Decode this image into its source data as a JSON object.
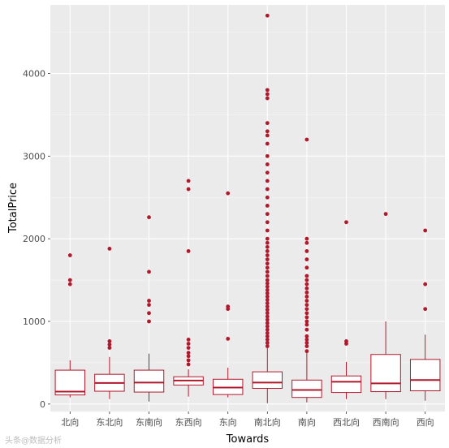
{
  "chart_data": {
    "type": "box",
    "xlabel": "Towards",
    "ylabel": "TotalPrice",
    "ylim": [
      -90,
      4830
    ],
    "y_ticks": [
      0,
      1000,
      2000,
      3000,
      4000
    ],
    "grid": true,
    "panel_color": "#ebebeb",
    "box_color": "#b2182b",
    "outlier_color": "#b2182b",
    "categories": [
      "北向",
      "东北向",
      "东南向",
      "东西向",
      "东向",
      "南北向",
      "南向",
      "西北向",
      "西南向",
      "西向"
    ],
    "boxes": [
      {
        "category": "北向",
        "whisker_low": 80,
        "q1": 110,
        "median": 150,
        "q3": 410,
        "whisker_high": 530,
        "outliers": [
          1450,
          1500,
          1800
        ]
      },
      {
        "category": "东北向",
        "whisker_low": 60,
        "q1": 155,
        "median": 255,
        "q3": 360,
        "whisker_high": 570,
        "outliers": [
          680,
          720,
          760,
          1880
        ]
      },
      {
        "category": "东南向",
        "whisker_low": 30,
        "q1": 145,
        "median": 260,
        "q3": 410,
        "whisker_high": 610,
        "outliers": [
          1000,
          1100,
          1200,
          1250,
          1600,
          2260
        ]
      },
      {
        "category": "东西向",
        "whisker_low": 90,
        "q1": 230,
        "median": 285,
        "q3": 330,
        "whisker_high": 420,
        "outliers": [
          480,
          530,
          580,
          620,
          680,
          730,
          780,
          1850,
          2600,
          2700
        ]
      },
      {
        "category": "东向",
        "whisker_low": 80,
        "q1": 115,
        "median": 200,
        "q3": 300,
        "whisker_high": 440,
        "outliers": [
          790,
          1150,
          1180,
          2550
        ]
      },
      {
        "category": "南北向",
        "whisker_low": 10,
        "q1": 190,
        "median": 260,
        "q3": 390,
        "whisker_high": 680,
        "outliers": [
          700,
          740,
          780,
          820,
          860,
          900,
          940,
          980,
          1020,
          1060,
          1100,
          1140,
          1180,
          1220,
          1260,
          1300,
          1340,
          1380,
          1420,
          1460,
          1500,
          1550,
          1600,
          1650,
          1700,
          1750,
          1800,
          1850,
          1900,
          1950,
          2000,
          2100,
          2200,
          2300,
          2400,
          2500,
          2600,
          2700,
          2800,
          2900,
          3000,
          3150,
          3250,
          3300,
          3400,
          3700,
          3750,
          3800,
          4700
        ]
      },
      {
        "category": "南向",
        "whisker_low": 20,
        "q1": 80,
        "median": 170,
        "q3": 290,
        "whisker_high": 620,
        "outliers": [
          640,
          700,
          740,
          780,
          820,
          900,
          960,
          1000,
          1050,
          1100,
          1150,
          1200,
          1250,
          1300,
          1350,
          1400,
          1450,
          1500,
          1550,
          1650,
          1750,
          1850,
          1950,
          2000,
          3200
        ]
      },
      {
        "category": "西北向",
        "whisker_low": 60,
        "q1": 140,
        "median": 270,
        "q3": 340,
        "whisker_high": 510,
        "outliers": [
          730,
          760,
          2200
        ]
      },
      {
        "category": "西南向",
        "whisker_low": 60,
        "q1": 150,
        "median": 250,
        "q3": 600,
        "whisker_high": 1000,
        "outliers": [
          2300
        ]
      },
      {
        "category": "西向",
        "whisker_low": 40,
        "q1": 160,
        "median": 290,
        "q3": 540,
        "whisker_high": 840,
        "outliers": [
          1150,
          1450,
          2100
        ]
      }
    ]
  },
  "watermark": "头条@数据分析"
}
